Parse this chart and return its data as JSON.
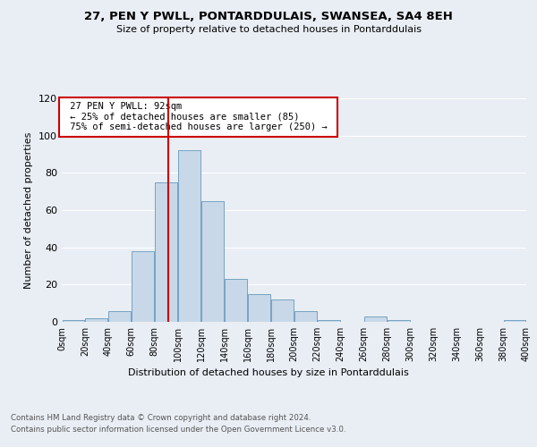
{
  "title1": "27, PEN Y PWLL, PONTARDDULAIS, SWANSEA, SA4 8EH",
  "title2": "Size of property relative to detached houses in Pontarddulais",
  "xlabel": "Distribution of detached houses by size in Pontarddulais",
  "ylabel": "Number of detached properties",
  "footnote1": "Contains HM Land Registry data © Crown copyright and database right 2024.",
  "footnote2": "Contains public sector information licensed under the Open Government Licence v3.0.",
  "annotation_title": "27 PEN Y PWLL: 92sqm",
  "annotation_line1": "← 25% of detached houses are smaller (85)",
  "annotation_line2": "75% of semi-detached houses are larger (250) →",
  "bin_edges": [
    0,
    20,
    40,
    60,
    80,
    100,
    120,
    140,
    160,
    180,
    200,
    220,
    240,
    260,
    280,
    300,
    320,
    340,
    360,
    380,
    400
  ],
  "bar_heights": [
    1,
    2,
    6,
    38,
    75,
    92,
    65,
    23,
    15,
    12,
    6,
    1,
    0,
    3,
    1,
    0,
    0,
    0,
    0,
    1
  ],
  "bar_color": "#c8d8e8",
  "bar_edge_color": "#6699bb",
  "vline_x": 92,
  "vline_color": "#cc0000",
  "annotation_box_color": "#cc0000",
  "ylim": [
    0,
    120
  ],
  "yticks": [
    0,
    20,
    40,
    60,
    80,
    100,
    120
  ],
  "bg_color": "#e8eef4",
  "grid_color": "#ffffff"
}
